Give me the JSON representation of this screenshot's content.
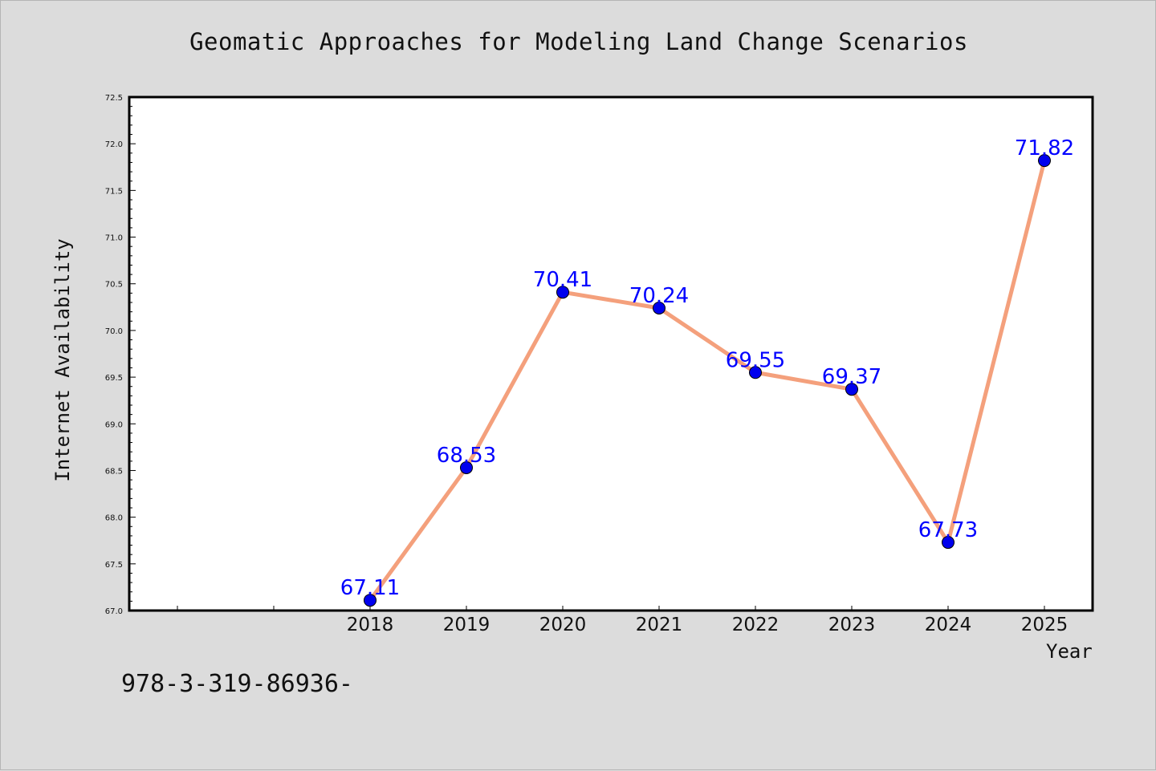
{
  "chart_data": {
    "type": "line",
    "title": "Geomatic Approaches for Modeling Land Change Scenarios",
    "xlabel": "Year",
    "ylabel": "Internet Availability",
    "ylim": [
      67.0,
      72.5
    ],
    "yticks": [
      "67.0",
      "67.5",
      "68.0",
      "68.5",
      "69.0",
      "69.5",
      "70.0",
      "70.5",
      "71.0",
      "71.5",
      "72.0",
      "72.5"
    ],
    "categories": [
      "2018",
      "2019",
      "2020",
      "2021",
      "2022",
      "2023",
      "2024",
      "2025"
    ],
    "series": [
      {
        "values": [
          67.11,
          68.53,
          70.41,
          70.24,
          69.55,
          69.37,
          67.73,
          71.82
        ]
      }
    ],
    "data_labels": [
      "67.11",
      "68.53",
      "70.41",
      "70.24",
      "69.55",
      "69.37",
      "67.73",
      "71.82"
    ],
    "grid": false,
    "colors": {
      "line": "#f4a07c",
      "marker": "#0000ee",
      "label": "#0000ff",
      "background": "#dcdcdc",
      "plot_area": "#ffffff"
    }
  },
  "footer": {
    "isbn": "978-3-319-86936-"
  }
}
